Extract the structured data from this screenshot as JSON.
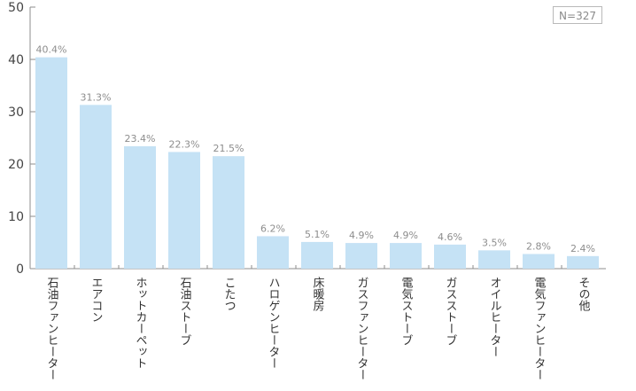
{
  "chart_data": {
    "type": "bar",
    "categories": [
      "石油ファンヒーター",
      "エアコン",
      "ホットカーペット",
      "石油ストーブ",
      "こたつ",
      "ハロゲンヒーター",
      "床暖房",
      "ガスファンヒーター",
      "電気ストーブ",
      "ガスストーブ",
      "オイルヒーター",
      "電気ファンヒーター",
      "その他"
    ],
    "values": [
      40.4,
      31.3,
      23.4,
      22.3,
      21.5,
      6.2,
      5.1,
      4.9,
      4.9,
      4.6,
      3.5,
      2.8,
      2.4
    ],
    "data_labels": [
      "40.4%",
      "31.3%",
      "23.4%",
      "22.3%",
      "21.5%",
      "6.2%",
      "5.1%",
      "4.9%",
      "4.9%",
      "4.6%",
      "3.5%",
      "2.8%",
      "2.4%"
    ],
    "yticks": [
      0,
      10,
      20,
      30,
      40,
      50
    ],
    "ylim": [
      0,
      50
    ],
    "grid": false,
    "legend": "none",
    "sample_note": "N=327",
    "colors": {
      "bar": "#c5e2f5",
      "axis": "#8c8c8c",
      "label": "#8d8d8d",
      "text": "#333333"
    }
  }
}
